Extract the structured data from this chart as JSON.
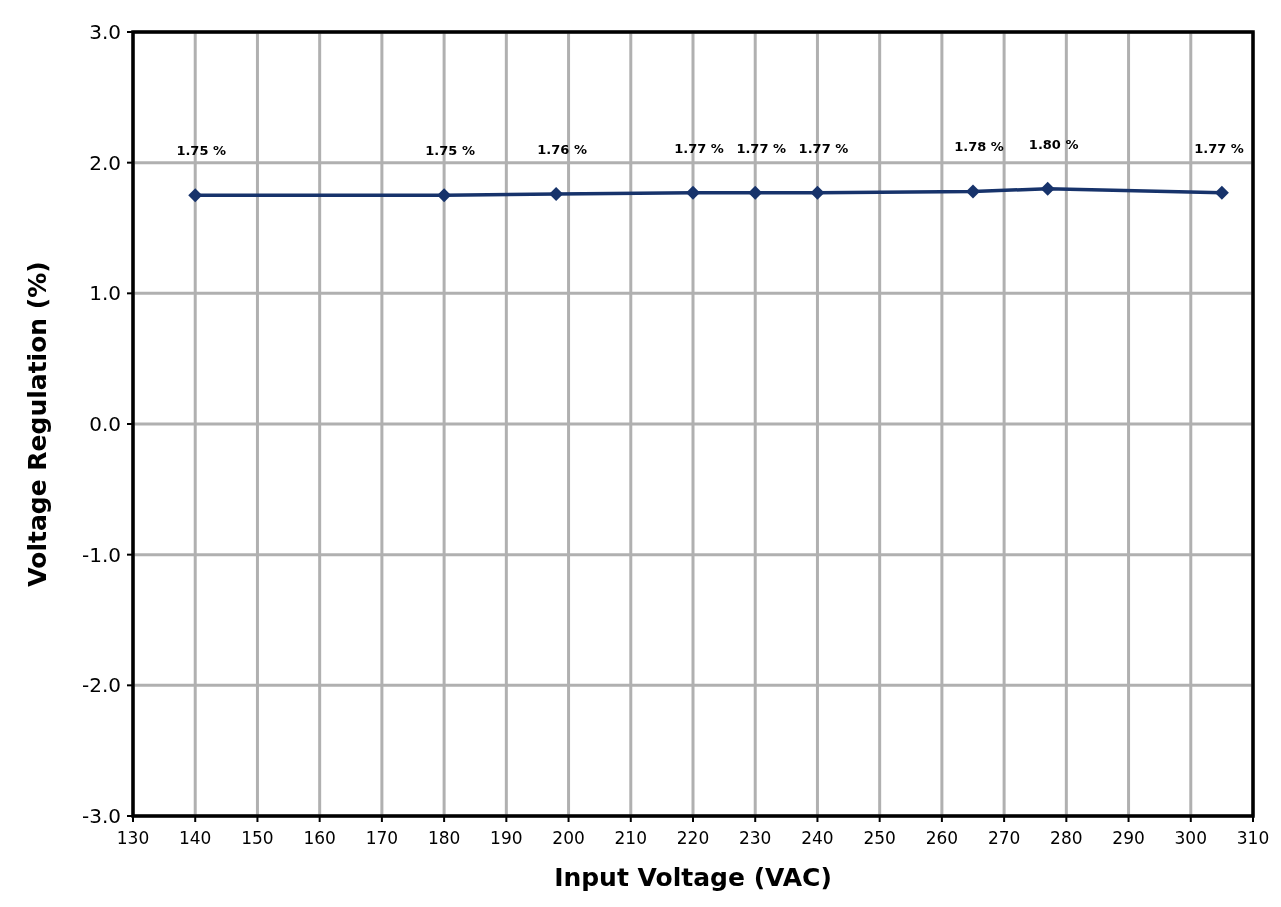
{
  "chart_data": {
    "type": "line",
    "xlabel": "Input Voltage (VAC)",
    "ylabel": "Voltage Regulation (%)",
    "x": [
      140,
      180,
      198,
      220,
      230,
      240,
      265,
      277,
      305
    ],
    "series": [
      {
        "color": "#17336b",
        "values": [
          1.75,
          1.75,
          1.76,
          1.77,
          1.77,
          1.77,
          1.78,
          1.8,
          1.77
        ],
        "value_labels": [
          "1.75 %",
          "1.75 %",
          "1.76 %",
          "1.77 %",
          "1.77 %",
          "1.77 %",
          "1.78 %",
          "1.80 %",
          "1.77 %"
        ]
      }
    ],
    "xlim": [
      130,
      310
    ],
    "xticks": [
      130,
      140,
      150,
      160,
      170,
      180,
      190,
      200,
      210,
      220,
      230,
      240,
      250,
      260,
      270,
      280,
      290,
      300,
      310
    ],
    "ylim": [
      -3,
      3
    ],
    "yticks": [
      {
        "value": -3,
        "label": "-3.0"
      },
      {
        "value": -2,
        "label": "-2.0"
      },
      {
        "value": -1,
        "label": "-1.0"
      },
      {
        "value": 0,
        "label": "0.0"
      },
      {
        "value": 1,
        "label": "1.0"
      },
      {
        "value": 2,
        "label": "2.0"
      },
      {
        "value": 3,
        "label": "3.0"
      }
    ],
    "grid": true,
    "marker": "diamond",
    "line_style": "solid"
  }
}
